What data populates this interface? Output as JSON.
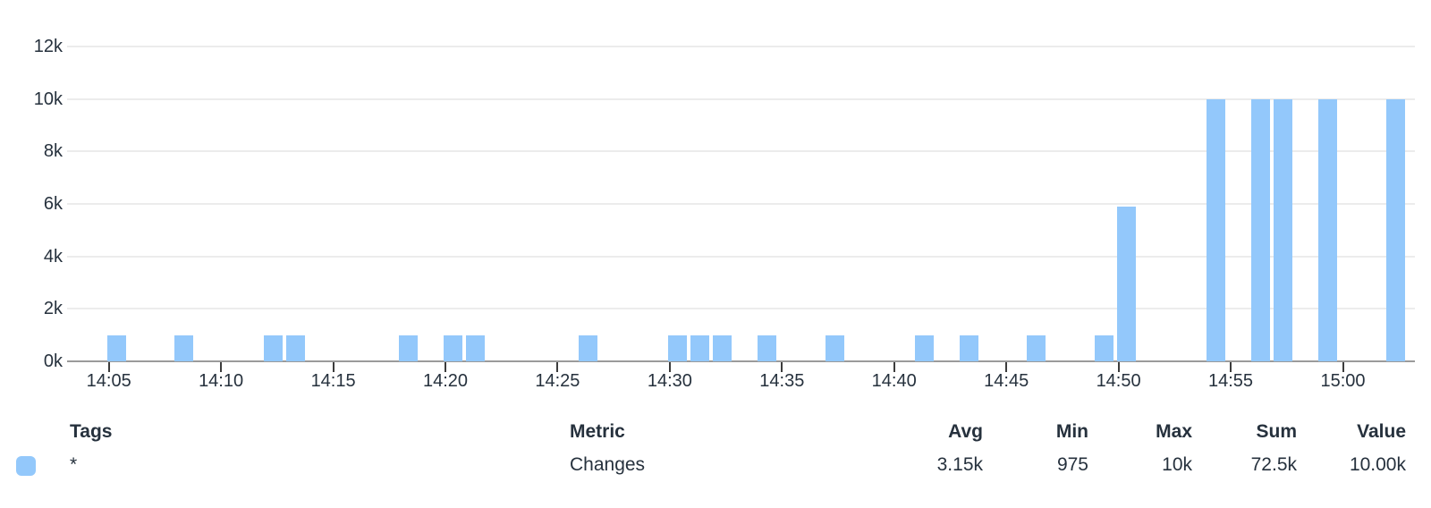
{
  "colors": {
    "bar": "#93c8fb",
    "text": "#26313d",
    "grid": "#ececec",
    "axis_line": "#9b9b9b",
    "tick": "#3c3c3c"
  },
  "chart_data": {
    "type": "bar",
    "title": "",
    "xlabel": "",
    "ylabel": "",
    "grid": "horizontal-only",
    "legend_position": "bottom",
    "ylim": [
      0,
      12000
    ],
    "y_ticks": [
      "0k",
      "2k",
      "4k",
      "6k",
      "8k",
      "10k",
      "12k"
    ],
    "x_ticks": [
      "14:05",
      "14:10",
      "14:15",
      "14:20",
      "14:25",
      "14:30",
      "14:35",
      "14:40",
      "14:45",
      "14:50",
      "14:55",
      "15:00"
    ],
    "x_visible_range": [
      "14:03",
      "15:03"
    ],
    "series": [
      {
        "name": "*",
        "metric": "Changes",
        "color": "#93c8fb",
        "points": [
          [
            "14:05",
            975
          ],
          [
            "14:08",
            975
          ],
          [
            "14:12",
            975
          ],
          [
            "14:13",
            975
          ],
          [
            "14:18",
            975
          ],
          [
            "14:20",
            975
          ],
          [
            "14:21",
            975
          ],
          [
            "14:26",
            975
          ],
          [
            "14:30",
            975
          ],
          [
            "14:31",
            975
          ],
          [
            "14:32",
            975
          ],
          [
            "14:34",
            975
          ],
          [
            "14:37",
            975
          ],
          [
            "14:41",
            975
          ],
          [
            "14:43",
            975
          ],
          [
            "14:46",
            975
          ],
          [
            "14:49",
            975
          ],
          [
            "14:50",
            5900
          ],
          [
            "14:54",
            10000
          ],
          [
            "14:56",
            10000
          ],
          [
            "14:57",
            10000
          ],
          [
            "14:59",
            10000
          ],
          [
            "15:02",
            10000
          ]
        ]
      }
    ]
  },
  "legend": {
    "headers": {
      "tags": "Tags",
      "metric": "Metric",
      "avg": "Avg",
      "min": "Min",
      "max": "Max",
      "sum": "Sum",
      "value": "Value"
    },
    "rows": [
      {
        "tags": "*",
        "metric": "Changes",
        "avg": "3.15k",
        "min": "975",
        "max": "10k",
        "sum": "72.5k",
        "value": "10.00k",
        "swatch_color": "#93c8fb"
      }
    ]
  }
}
